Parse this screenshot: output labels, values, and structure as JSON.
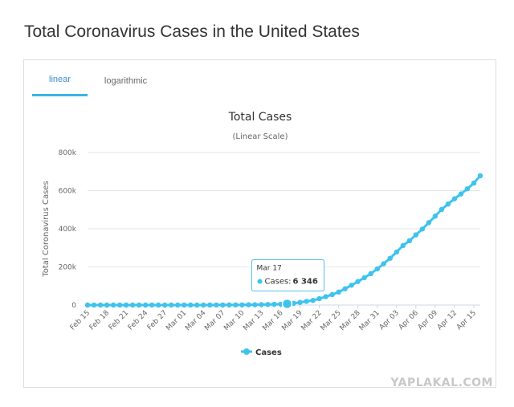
{
  "page": {
    "title": "Total Coronavirus Cases in the United States",
    "watermark": "YAPLAKAL.COM"
  },
  "tabs": [
    {
      "label": "linear",
      "active": true
    },
    {
      "label": "logarithmic",
      "active": false
    }
  ],
  "colors": {
    "series": "#3ec3ee",
    "active_tab": "#3bb4e5",
    "tooltip_border": "#58c0e8"
  },
  "chart_data": {
    "type": "line",
    "title": "Total Cases",
    "subtitle": "(Linear Scale)",
    "xlabel": "",
    "ylabel": "Total Coronavirus Cases",
    "ylim": [
      0,
      800000
    ],
    "yticks": [
      0,
      200000,
      400000,
      600000,
      800000
    ],
    "ytick_labels": [
      "0",
      "200k",
      "400k",
      "600k",
      "800k"
    ],
    "grid": true,
    "legend_position": "bottom-center",
    "x": [
      "Feb 15",
      "Feb 16",
      "Feb 17",
      "Feb 18",
      "Feb 19",
      "Feb 20",
      "Feb 21",
      "Feb 22",
      "Feb 23",
      "Feb 24",
      "Feb 25",
      "Feb 26",
      "Feb 27",
      "Feb 28",
      "Feb 29",
      "Mar 01",
      "Mar 02",
      "Mar 03",
      "Mar 04",
      "Mar 05",
      "Mar 06",
      "Mar 07",
      "Mar 08",
      "Mar 09",
      "Mar 10",
      "Mar 11",
      "Mar 12",
      "Mar 13",
      "Mar 14",
      "Mar 15",
      "Mar 16",
      "Mar 17",
      "Mar 18",
      "Mar 19",
      "Mar 20",
      "Mar 21",
      "Mar 22",
      "Mar 23",
      "Mar 24",
      "Mar 25",
      "Mar 26",
      "Mar 27",
      "Mar 28",
      "Mar 29",
      "Mar 30",
      "Mar 31",
      "Apr 01",
      "Apr 02",
      "Apr 03",
      "Apr 04",
      "Apr 05",
      "Apr 06",
      "Apr 07",
      "Apr 08",
      "Apr 09",
      "Apr 10",
      "Apr 11",
      "Apr 12",
      "Apr 13",
      "Apr 14",
      "Apr 15",
      "Apr 16"
    ],
    "xtick_labels": [
      "Feb 15",
      "Feb 18",
      "Feb 21",
      "Feb 24",
      "Feb 27",
      "Mar 01",
      "Mar 04",
      "Mar 07",
      "Mar 10",
      "Mar 13",
      "Mar 16",
      "Mar 19",
      "Mar 22",
      "Mar 25",
      "Mar 28",
      "Mar 31",
      "Apr 03",
      "Apr 06",
      "Apr 09",
      "Apr 12",
      "Apr 15"
    ],
    "series": [
      {
        "name": "Cases",
        "values": [
          15,
          15,
          15,
          15,
          15,
          15,
          35,
          35,
          35,
          53,
          57,
          60,
          60,
          62,
          68,
          75,
          100,
          124,
          158,
          221,
          319,
          435,
          541,
          704,
          994,
          1301,
          1697,
          2247,
          2943,
          3680,
          4663,
          6346,
          9197,
          13779,
          19367,
          24192,
          33592,
          43781,
          54856,
          68211,
          85356,
          104126,
          123578,
          143491,
          164620,
          189618,
          216722,
          245540,
          277953,
          312245,
          337072,
          368196,
          398809,
          432132,
          466299,
          501615,
          530006,
          557571,
          582594,
          609685,
          639664,
          678210
        ]
      }
    ],
    "tooltip": {
      "date": "Mar 17",
      "label": "Cases:",
      "value": "6 346"
    }
  }
}
